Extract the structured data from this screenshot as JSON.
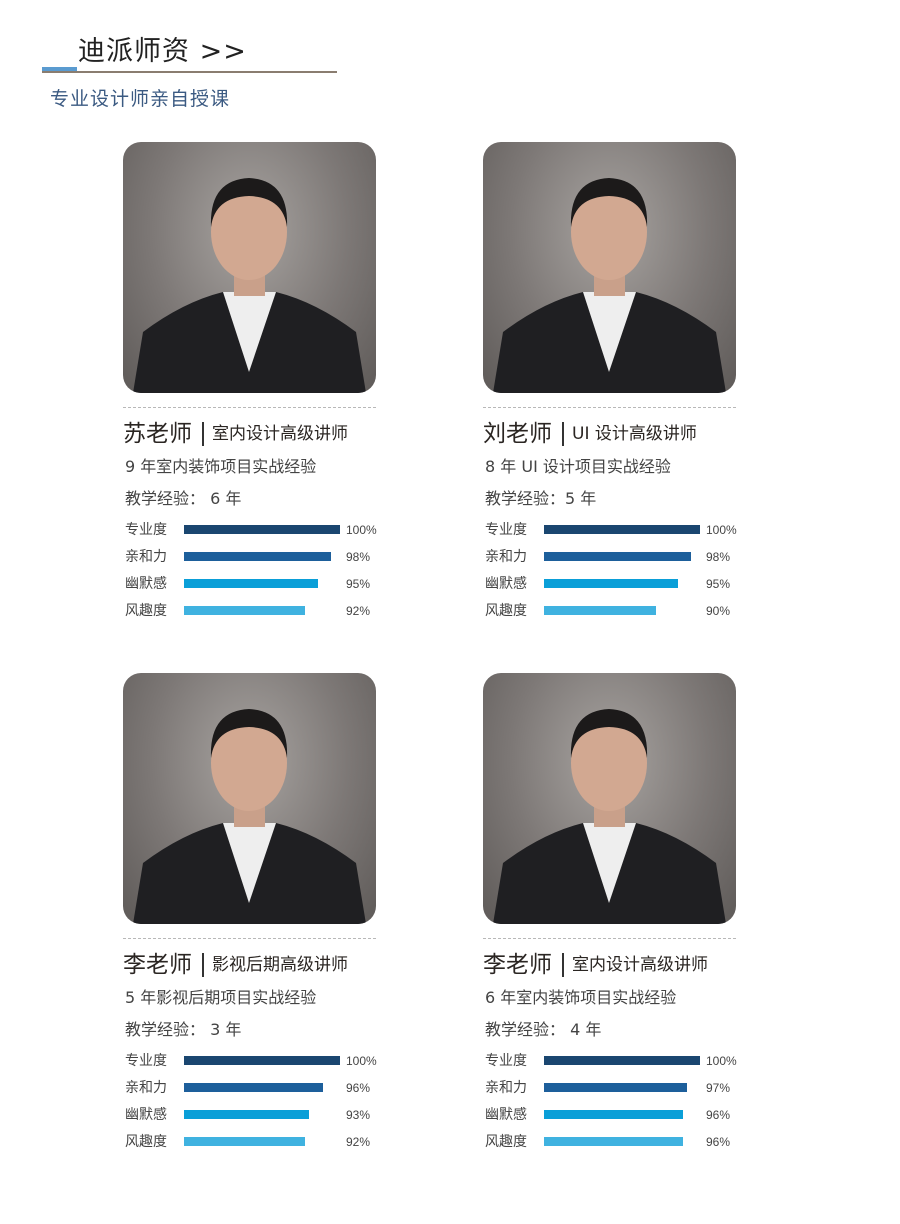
{
  "header": {
    "title": "迪派师资 >>",
    "subtitle": "专业设计师亲自授课",
    "accent_color": "#5a9bd0"
  },
  "bar_colors": [
    "#1a4670",
    "#1d5f9b",
    "#0a9fd8",
    "#3fb2e0"
  ],
  "teachers": [
    {
      "name": "苏老师",
      "role": "室内设计高级讲师",
      "experience": "9 年室内装饰项目实战经验",
      "teaching": "教学经验： 6 年",
      "photo": "portrait-photo",
      "stats": [
        {
          "label": "专业度",
          "value": 100,
          "text": "100%"
        },
        {
          "label": "亲和力",
          "value": 98,
          "text": "98%"
        },
        {
          "label": "幽默感",
          "value": 95,
          "text": "95%"
        },
        {
          "label": "风趣度",
          "value": 92,
          "text": "92%"
        }
      ]
    },
    {
      "name": "刘老师",
      "role": "UI 设计高级讲师",
      "experience": "8 年 UI 设计项目实战经验",
      "teaching": "教学经验：5 年",
      "photo": "portrait-photo",
      "stats": [
        {
          "label": "专业度",
          "value": 100,
          "text": "100%"
        },
        {
          "label": "亲和力",
          "value": 98,
          "text": "98%"
        },
        {
          "label": "幽默感",
          "value": 95,
          "text": "95%"
        },
        {
          "label": "风趣度",
          "value": 90,
          "text": "90%"
        }
      ]
    },
    {
      "name": "李老师",
      "role": "影视后期高级讲师",
      "experience": "5 年影视后期项目实战经验",
      "teaching": "教学经验： 3 年",
      "photo": "portrait-photo",
      "stats": [
        {
          "label": "专业度",
          "value": 100,
          "text": "100%"
        },
        {
          "label": "亲和力",
          "value": 96,
          "text": "96%"
        },
        {
          "label": "幽默感",
          "value": 93,
          "text": "93%"
        },
        {
          "label": "风趣度",
          "value": 92,
          "text": "92%"
        }
      ]
    },
    {
      "name": "李老师",
      "role": "室内设计高级讲师",
      "experience": "6 年室内装饰项目实战经验",
      "teaching": "教学经验： 4 年",
      "photo": "portrait-photo",
      "stats": [
        {
          "label": "专业度",
          "value": 100,
          "text": "100%"
        },
        {
          "label": "亲和力",
          "value": 97,
          "text": "97%"
        },
        {
          "label": "幽默感",
          "value": 96,
          "text": "96%"
        },
        {
          "label": "风趣度",
          "value": 96,
          "text": "96%"
        }
      ]
    }
  ]
}
